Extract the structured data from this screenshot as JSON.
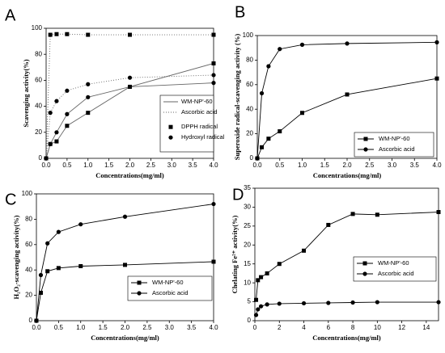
{
  "chart_data": [
    {
      "type": "line",
      "panel": "A",
      "xlabel": "Concentrations(mg/ml)",
      "ylabel": "Scavenging activity(%)",
      "x": [
        0,
        0.1,
        0.25,
        0.5,
        1,
        2,
        4
      ],
      "xlim": [
        0,
        4
      ],
      "xticks": [
        {
          "value": 0,
          "label": "0.0"
        },
        {
          "value": 0.5,
          "label": "0.5"
        },
        {
          "value": 1,
          "label": "1.0"
        },
        {
          "value": 1.5,
          "label": "1.5"
        },
        {
          "value": 2,
          "label": "2.0"
        },
        {
          "value": 2.5,
          "label": "2.5"
        },
        {
          "value": 3,
          "label": "3.0"
        },
        {
          "value": 3.5,
          "label": "3.5"
        },
        {
          "value": 4,
          "label": "4.0"
        }
      ],
      "ylim": [
        0,
        100
      ],
      "yticks": [
        0,
        20,
        40,
        60,
        80,
        100
      ],
      "legend": {
        "lines": [
          {
            "name": "WM-NP'-60",
            "dash": "solid",
            "color": "#666666"
          },
          {
            "name": "Ascorbic acid",
            "dash": "dotted",
            "color": "#666666"
          }
        ],
        "markers": [
          {
            "name": "DPPH radical",
            "shape": "square"
          },
          {
            "name": "Hydroxyl radical",
            "shape": "circle"
          }
        ]
      },
      "series": [
        {
          "line": "Ascorbic acid",
          "marker": "DPPH radical",
          "color": "#000000",
          "values": [
            0,
            95,
            95.5,
            95.5,
            95,
            95,
            95
          ]
        },
        {
          "line": "WM-NP'-60",
          "marker": "DPPH radical",
          "color": "#000000",
          "values": [
            0,
            11,
            13,
            25,
            35,
            55,
            73
          ]
        },
        {
          "line": "WM-NP'-60",
          "marker": "Hydroxyl radical",
          "color": "#000000",
          "values": [
            0,
            11,
            20,
            34,
            47,
            55,
            58
          ]
        },
        {
          "line": "Ascorbic acid",
          "marker": "Hydroxyl radical",
          "color": "#000000",
          "values": [
            0,
            35,
            44,
            52,
            57,
            62,
            64
          ]
        }
      ]
    },
    {
      "type": "line",
      "panel": "B",
      "xlabel": "Concentrations(mg/ml)",
      "ylabel": "Superoxide radical-scavenging activity (%)",
      "x": [
        0,
        0.1,
        0.25,
        0.5,
        1,
        2,
        4
      ],
      "xlim": [
        0,
        4
      ],
      "xticks": [
        {
          "value": 0,
          "label": "0.0"
        },
        {
          "value": 0.5,
          "label": "0.5"
        },
        {
          "value": 1,
          "label": "1.0"
        },
        {
          "value": 1.5,
          "label": "1.5"
        },
        {
          "value": 2,
          "label": "2.0"
        },
        {
          "value": 2.5,
          "label": "2.5"
        },
        {
          "value": 3,
          "label": "3.0"
        },
        {
          "value": 3.5,
          "label": "3.5"
        },
        {
          "value": 4,
          "label": "4.0"
        }
      ],
      "ylim": [
        0,
        100
      ],
      "yticks": [
        0,
        20,
        40,
        60,
        80,
        100
      ],
      "series": [
        {
          "name": "WM-NP'-60",
          "marker": "square",
          "color": "#000000",
          "values": [
            0,
            9,
            16,
            22,
            37,
            52,
            65
          ]
        },
        {
          "name": "Ascorbic acid",
          "marker": "circle",
          "color": "#000000",
          "values": [
            0,
            53,
            75,
            89,
            92.5,
            93.5,
            94.5
          ]
        }
      ]
    },
    {
      "type": "line",
      "panel": "C",
      "xlabel": "Concentrations(mg/ml)",
      "ylabel": "H₂O₂-scavenging activity(%)",
      "x": [
        0,
        0.1,
        0.25,
        0.5,
        1,
        2,
        4
      ],
      "xlim": [
        0,
        4
      ],
      "xticks": [
        {
          "value": 0,
          "label": "0.0"
        },
        {
          "value": 0.5,
          "label": "0.5"
        },
        {
          "value": 1,
          "label": "1.0"
        },
        {
          "value": 1.5,
          "label": "1.5"
        },
        {
          "value": 2,
          "label": "2.0"
        },
        {
          "value": 2.5,
          "label": "2.5"
        },
        {
          "value": 3,
          "label": "3.0"
        },
        {
          "value": 3.5,
          "label": "3.5"
        },
        {
          "value": 4,
          "label": "4.0"
        }
      ],
      "ylim": [
        0,
        100
      ],
      "yticks": [
        0,
        20,
        40,
        60,
        80,
        100
      ],
      "series": [
        {
          "name": "WM-NP'-60",
          "marker": "square",
          "color": "#000000",
          "values": [
            0,
            22,
            39,
            41.5,
            43,
            44,
            46.5
          ]
        },
        {
          "name": "Ascorbic acid",
          "marker": "circle",
          "color": "#000000",
          "values": [
            0,
            36,
            61,
            70,
            76,
            82,
            92
          ]
        }
      ]
    },
    {
      "type": "line",
      "panel": "D",
      "xlabel": "Concentrations(mg/ml)",
      "ylabel": "Chelating Fe²⁺ activity(%)",
      "x": [
        0.1,
        0.25,
        0.5,
        1,
        2,
        4,
        6,
        8,
        10,
        15
      ],
      "xlim": [
        0,
        15
      ],
      "xticks": [
        0,
        2,
        4,
        6,
        8,
        10,
        12,
        14
      ],
      "ylim": [
        0,
        35
      ],
      "yticks": [
        0,
        5,
        10,
        15,
        20,
        25,
        30,
        35
      ],
      "series": [
        {
          "name": "WM-NP'-60",
          "marker": "square",
          "color": "#000000",
          "values": [
            5.5,
            10.7,
            11.5,
            12.5,
            15,
            18.5,
            25.3,
            28.2,
            28,
            28.7
          ]
        },
        {
          "name": "Ascorbic acid",
          "marker": "circle",
          "color": "#000000",
          "values": [
            1.5,
            3,
            3.8,
            4.3,
            4.5,
            4.6,
            4.7,
            4.8,
            4.9,
            4.9
          ]
        }
      ]
    }
  ]
}
